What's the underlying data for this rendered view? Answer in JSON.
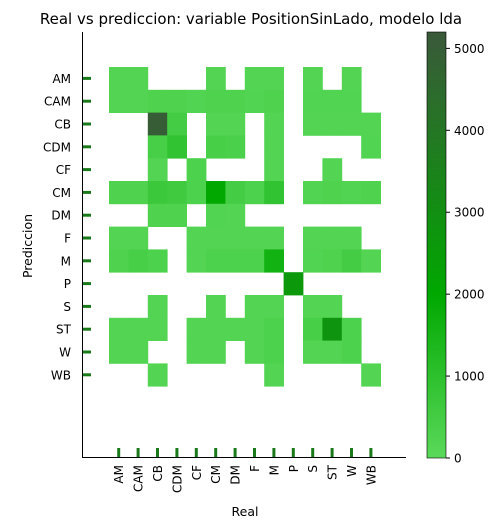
{
  "chart_data": {
    "type": "heatmap",
    "title": "Real vs prediccion: variable PositionSinLado, modelo lda",
    "xlabel": "Real",
    "ylabel": "Prediccion",
    "x_categories": [
      "AM",
      "CAM",
      "CB",
      "CDM",
      "CF",
      "CM",
      "DM",
      "F",
      "M",
      "P",
      "S",
      "ST",
      "W",
      "WB"
    ],
    "y_categories": [
      "AM",
      "CAM",
      "CB",
      "CDM",
      "CF",
      "CM",
      "DM",
      "F",
      "M",
      "P",
      "S",
      "ST",
      "W",
      "WB"
    ],
    "values": [
      [
        150,
        150,
        0,
        0,
        0,
        150,
        0,
        150,
        150,
        0,
        150,
        0,
        150,
        0
      ],
      [
        150,
        150,
        250,
        250,
        200,
        250,
        250,
        200,
        250,
        0,
        200,
        200,
        200,
        0
      ],
      [
        0,
        0,
        5000,
        500,
        0,
        150,
        150,
        0,
        150,
        0,
        150,
        150,
        150,
        150
      ],
      [
        0,
        0,
        400,
        900,
        0,
        400,
        350,
        0,
        150,
        0,
        0,
        0,
        0,
        200
      ],
      [
        0,
        0,
        150,
        0,
        300,
        0,
        0,
        0,
        150,
        0,
        0,
        150,
        0,
        0
      ],
      [
        250,
        250,
        700,
        600,
        300,
        2000,
        500,
        300,
        900,
        0,
        200,
        250,
        200,
        250
      ],
      [
        0,
        0,
        250,
        250,
        0,
        200,
        150,
        0,
        0,
        0,
        0,
        0,
        0,
        0
      ],
      [
        150,
        150,
        0,
        0,
        150,
        150,
        150,
        150,
        150,
        0,
        150,
        150,
        150,
        0
      ],
      [
        250,
        400,
        300,
        0,
        150,
        300,
        300,
        300,
        1600,
        0,
        200,
        250,
        500,
        150
      ],
      [
        0,
        0,
        0,
        0,
        0,
        0,
        0,
        0,
        0,
        2600,
        0,
        0,
        0,
        0
      ],
      [
        0,
        0,
        150,
        0,
        0,
        150,
        0,
        150,
        150,
        0,
        150,
        150,
        0,
        0
      ],
      [
        150,
        150,
        150,
        0,
        150,
        150,
        150,
        150,
        300,
        0,
        400,
        2800,
        300,
        0
      ],
      [
        150,
        150,
        0,
        0,
        150,
        150,
        0,
        150,
        300,
        0,
        150,
        150,
        300,
        0
      ],
      [
        0,
        0,
        150,
        0,
        0,
        0,
        0,
        0,
        150,
        0,
        0,
        0,
        0,
        150
      ]
    ],
    "zlim": [
      0,
      5200
    ],
    "colorbar_ticks": [
      0,
      1000,
      2000,
      3000,
      4000,
      5000
    ],
    "colormap": [
      "#5ad95a",
      "#00a800",
      "#3a583a"
    ],
    "grid": false
  }
}
